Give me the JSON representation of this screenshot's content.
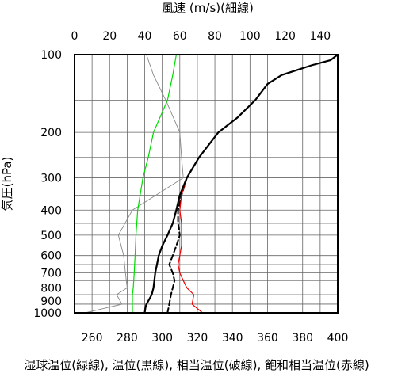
{
  "chart_data": {
    "type": "line",
    "title": "",
    "top_axis": {
      "label": "風速 (m/s)(細線)",
      "range": [
        0,
        150
      ],
      "ticks": [
        0,
        20,
        40,
        60,
        80,
        100,
        120,
        140
      ],
      "grid_step": 10
    },
    "bottom_axis": {
      "label": "湿球温位(緑線), 温位(黒線), 相当温位(破線), 飽和相当温位(赤線)",
      "range": [
        250,
        400
      ],
      "ticks": [
        260,
        280,
        300,
        320,
        340,
        360,
        380,
        400
      ]
    },
    "left_axis": {
      "label": "気圧(hPa)",
      "scale": "log",
      "range": [
        1000,
        100
      ],
      "ticks": [
        100,
        200,
        300,
        400,
        500,
        600,
        700,
        800,
        900,
        1000
      ],
      "grid": [
        1000,
        925,
        850,
        800,
        750,
        700,
        650,
        600,
        550,
        500,
        450,
        400,
        350,
        300,
        250,
        200,
        150,
        100
      ]
    },
    "series": [
      {
        "name": "風速",
        "axis": "top",
        "color": "#888888",
        "style": "thin",
        "pressure": [
          1000,
          925,
          850,
          800,
          700,
          600,
          500,
          400,
          300,
          250,
          200,
          150,
          120,
          100
        ],
        "values": [
          6,
          27,
          24,
          30,
          29,
          28,
          25,
          33,
          62,
          61,
          60,
          52,
          45,
          41
        ]
      },
      {
        "name": "湿球温位",
        "axis": "bottom",
        "color": "#00dd00",
        "style": "solid",
        "pressure": [
          1000,
          925,
          850,
          800,
          700,
          600,
          500,
          400,
          300,
          250,
          200,
          150,
          120,
          100
        ],
        "values": [
          283,
          283,
          283,
          283.5,
          284,
          284.5,
          285,
          286,
          289,
          292,
          295,
          303,
          306,
          308
        ]
      },
      {
        "name": "温位",
        "axis": "bottom",
        "color": "#000000",
        "style": "bold",
        "pressure": [
          1000,
          950,
          925,
          900,
          850,
          800,
          750,
          700,
          650,
          600,
          550,
          500,
          450,
          400,
          350,
          300,
          250,
          200,
          175,
          150,
          130,
          120,
          110,
          105,
          100
        ],
        "values": [
          290,
          290.5,
          291,
          292,
          294,
          295,
          295.5,
          296,
          297,
          298,
          300,
          303,
          306,
          308,
          310,
          314,
          321,
          332,
          343,
          353,
          360,
          368,
          385,
          396,
          400
        ]
      },
      {
        "name": "相当温位",
        "axis": "bottom",
        "color": "#000000",
        "style": "dashed",
        "pressure": [
          1000,
          925,
          850,
          800,
          750,
          700,
          650,
          600,
          550,
          500,
          450,
          400,
          350,
          300
        ],
        "values": [
          303,
          304,
          305,
          306,
          307,
          306,
          304,
          306,
          308,
          310,
          309,
          309,
          311,
          314
        ]
      },
      {
        "name": "飽和相当温位",
        "axis": "bottom",
        "color": "#ee0000",
        "style": "solid",
        "pressure": [
          1000,
          925,
          850,
          800,
          750,
          700,
          650,
          600,
          550,
          500,
          450,
          400,
          350,
          300,
          250,
          200,
          175,
          150,
          130,
          120,
          110,
          105,
          100
        ],
        "values": [
          323,
          317,
          318,
          314,
          312,
          310,
          309,
          310,
          311,
          311,
          311,
          310,
          311,
          314,
          321,
          332,
          343,
          353,
          360,
          368,
          385,
          396,
          400
        ]
      }
    ]
  }
}
